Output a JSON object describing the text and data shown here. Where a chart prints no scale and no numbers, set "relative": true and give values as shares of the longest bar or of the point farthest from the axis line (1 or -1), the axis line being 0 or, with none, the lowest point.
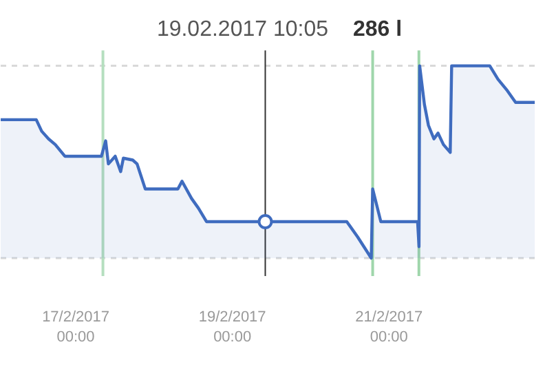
{
  "chart_data": {
    "type": "area",
    "title": "19.02.2017 10:05",
    "relative": true,
    "x": [
      "2017-02-16T01:00",
      "2017-02-16T11:54",
      "2017-02-16T13:34",
      "2017-02-16T15:40",
      "2017-02-16T17:45",
      "2017-02-16T20:40",
      "2017-02-17T07:53",
      "2017-02-17T09:10",
      "2017-02-17T10:00",
      "2017-02-17T12:06",
      "2017-02-17T13:46",
      "2017-02-17T14:36",
      "2017-02-17T17:28",
      "2017-02-17T18:48",
      "2017-02-17T21:18",
      "2017-02-18T07:18",
      "2017-02-18T08:34",
      "2017-02-18T11:30",
      "2017-02-18T13:36",
      "2017-02-18T16:04",
      "2017-02-20T11:04",
      "2017-02-20T14:24",
      "2017-02-20T18:34",
      "2017-02-20T19:00",
      "2017-02-20T21:30",
      "2017-02-21T08:46",
      "2017-02-21T09:12",
      "2017-02-21T09:24",
      "2017-02-21T10:51",
      "2017-02-21T12:06",
      "2017-02-21T13:46",
      "2017-02-21T15:02",
      "2017-02-21T16:42",
      "2017-02-21T18:46",
      "2017-02-21T19:12",
      "2017-02-22T06:53",
      "2017-02-22T09:24",
      "2017-02-22T12:18",
      "2017-02-22T14:48",
      "2017-02-22T20:40"
    ],
    "series": [
      {
        "color": "#3f6cbf",
        "values": [
          0.72,
          0.72,
          0.66,
          0.62,
          0.59,
          0.53,
          0.53,
          0.61,
          0.49,
          0.53,
          0.45,
          0.52,
          0.51,
          0.49,
          0.36,
          0.36,
          0.4,
          0.31,
          0.26,
          0.19,
          0.19,
          0.11,
          0.0,
          0.36,
          0.19,
          0.19,
          0.06,
          1.0,
          0.8,
          0.69,
          0.62,
          0.65,
          0.59,
          0.55,
          1.0,
          1.0,
          0.93,
          0.87,
          0.81,
          0.81
        ]
      },
      {
        "type": "scatter",
        "marker": "circle",
        "color": "#3f6cbf",
        "x": [
          "2017-02-19T10:05"
        ],
        "values": [
          0.19
        ]
      }
    ],
    "xlim": [
      "2017-02-16T01:00",
      "2017-02-22T22:20"
    ],
    "xticks": [
      {
        "value": "2017-02-17",
        "label": "17/2/2017\n00:00"
      },
      {
        "value": "2017-02-19",
        "label": "19/2/2017\n00:00"
      },
      {
        "value": "2017-02-21",
        "label": "21/2/2017\n00:00"
      }
    ],
    "ref_lines": [
      {
        "axis": "y",
        "value": 0,
        "color": "#d9d9d9",
        "line_style": "dashed"
      },
      {
        "axis": "y",
        "value": 1,
        "color": "#d9d9d9",
        "line_style": "dashed"
      },
      {
        "axis": "x",
        "value": "2017-02-17T08:20",
        "color": "#b5dfbf"
      },
      {
        "axis": "x",
        "value": "2017-02-20T19:00",
        "color": "#9fd6ab"
      },
      {
        "axis": "x",
        "value": "2017-02-21T09:10",
        "color": "#9fd6ab"
      },
      {
        "axis": "x",
        "value": "2017-02-19T10:05",
        "color": "#333333"
      }
    ],
    "annotations": [
      "286 l"
    ],
    "grid": false
  }
}
